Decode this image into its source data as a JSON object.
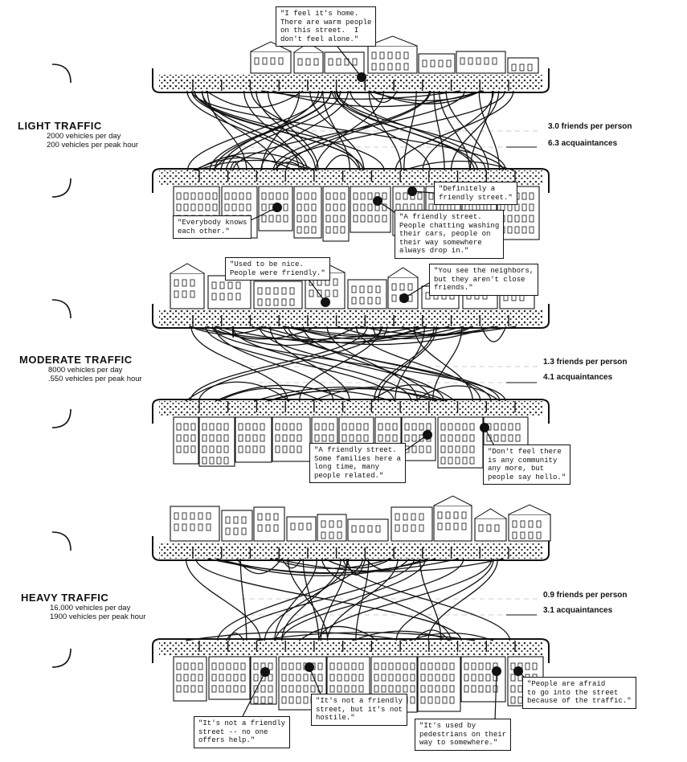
{
  "panels": [
    {
      "title": "LIGHT TRAFFIC",
      "line1": "2000  vehicles  per  day",
      "line2": "200  vehicles  per  peak  hour",
      "friends": "3.0 friends per person",
      "acquaintances": "6.3 acquaintances",
      "quotes": [
        "\"I feel it's home.\nThere are warm people\non this street.  I\ndon't feel alone.\"",
        "\"Definitely a\nfriendly street.\"",
        "\"Everybody knows\neach other.\"",
        "\"A friendly street.\nPeople chatting washing\ntheir cars, people on\ntheir way somewhere\nalways drop in.\""
      ]
    },
    {
      "title": "MODERATE TRAFFIC",
      "line1": "8000  vehicles  per  day",
      "line2": ".550  vehicles  per  peak  hour",
      "friends": "1.3 friends per person",
      "acquaintances": "4.1 acquaintances",
      "quotes": [
        "\"Used to be nice.\nPeople were friendly.\"",
        "\"You see the neighbors,\nbut they aren't close\nfriends.\"",
        "\"A friendly street.\nSome families here a\nlong time, many\npeople related.\"",
        "\"Don't feel there\nis any community\nany more, but\npeople say hello.\""
      ]
    },
    {
      "title": "HEAVY  TRAFFIC",
      "line1": "16,000  vehicles  per  day",
      "line2": "1900  vehicles  per  peak  hour",
      "friends": "0.9 friends per person",
      "acquaintances": "3.1 acquaintances",
      "quotes": [
        "\"It's not a friendly\nstreet -- no one\noffers help.\"",
        "\"It's not a friendly\nstreet, but it's not\nhostile.\"",
        "\"It's used by\npedestrians on their\nway to somewhere.\"",
        "\"People are afraid\nto go into the street\nbecause of the traffic.\""
      ]
    }
  ],
  "colors": {
    "ink": "#111111",
    "paper": "#ffffff"
  }
}
